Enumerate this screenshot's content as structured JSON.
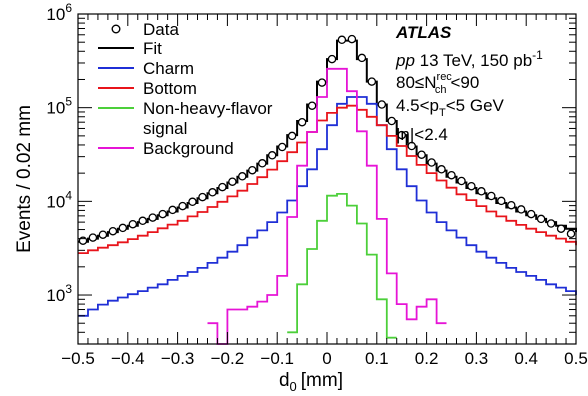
{
  "chart_data": {
    "type": "histogram",
    "xlabel_base": "d",
    "xlabel_sub": "0",
    "xlabel_unit": "[mm]",
    "ylabel": "Events / 0.02 mm",
    "xlim": [
      -0.5,
      0.5
    ],
    "ylim": [
      300,
      1000000
    ],
    "y_scale": "log",
    "x_tick_labels": [
      "-0.5",
      "-0.4",
      "-0.3",
      "-0.2",
      "-0.1",
      "0",
      "0.1",
      "0.2",
      "0.3",
      "0.4",
      "0.5"
    ],
    "y_tick_labels": [
      {
        "base": "10",
        "exp": "3",
        "value": 1000
      },
      {
        "base": "10",
        "exp": "4",
        "value": 10000
      },
      {
        "base": "10",
        "exp": "5",
        "value": 100000
      },
      {
        "base": "10",
        "exp": "6",
        "value": 1000000
      }
    ],
    "bin_edges_step": 0.02,
    "legend": [
      {
        "label": "Data",
        "style": "marker",
        "color": "#000000"
      },
      {
        "label": "Fit",
        "style": "line",
        "color": "#000000"
      },
      {
        "label": "Charm",
        "style": "line",
        "color": "#1f2fd6"
      },
      {
        "label": "Bottom",
        "style": "line",
        "color": "#e8141b"
      },
      {
        "label": "Non-heavy-flavor",
        "label2": "signal",
        "style": "line",
        "color": "#4ccf3a"
      },
      {
        "label": "Background",
        "style": "line",
        "color": "#e614d6"
      }
    ],
    "annotations": {
      "atlas": "ATLAS",
      "line1_italic": "pp",
      "line1_rest": " 13 TeV, 150 pb",
      "line1_sup": "-1",
      "line2_pre": "80≤N",
      "line2_sup": "rec",
      "line2_sub": "ch",
      "line2_post": "<90",
      "line3_pre": "4.5<p",
      "line3_sub": "T",
      "line3_post": "<5 GeV",
      "line4": "|η|<2.4"
    },
    "series": [
      {
        "name": "Data",
        "type": "points",
        "color": "#000000",
        "values": [
          3800,
          4100,
          4400,
          4800,
          5200,
          5700,
          6200,
          6700,
          7300,
          8100,
          8900,
          9900,
          11100,
          12500,
          14200,
          16200,
          18500,
          21500,
          25500,
          31000,
          38000,
          50000,
          70000,
          105000,
          185000,
          330000,
          530000,
          540000,
          340000,
          190000,
          108000,
          72000,
          51000,
          39000,
          31500,
          26000,
          22000,
          19000,
          16500,
          14500,
          12800,
          11400,
          10100,
          9100,
          8200,
          7300,
          6500,
          5800,
          5100,
          4500,
          4000
        ]
      },
      {
        "name": "Fit",
        "type": "step",
        "color": "#000000",
        "values": [
          3700,
          4000,
          4300,
          4700,
          5100,
          5500,
          6000,
          6500,
          7100,
          7800,
          8600,
          9600,
          10800,
          12200,
          13900,
          15900,
          18300,
          21300,
          25300,
          31000,
          38500,
          51000,
          72000,
          108000,
          190000,
          330000,
          520000,
          520000,
          330000,
          190000,
          108000,
          72000,
          51000,
          38500,
          31000,
          25300,
          21300,
          18300,
          15900,
          13900,
          12200,
          10800,
          9600,
          8600,
          7800,
          7100,
          6500,
          6000,
          5500,
          5100,
          4700
        ]
      },
      {
        "name": "Charm",
        "type": "step",
        "color": "#1f2fd6",
        "values": [
          600,
          700,
          790,
          870,
          940,
          1020,
          1100,
          1200,
          1300,
          1450,
          1600,
          1760,
          1950,
          2200,
          2500,
          2900,
          3400,
          4100,
          4900,
          6000,
          7600,
          10200,
          14500,
          22000,
          36000,
          65000,
          110000,
          130000,
          130000,
          110000,
          65000,
          36000,
          22000,
          14500,
          10200,
          7600,
          6000,
          4900,
          4100,
          3400,
          2900,
          2500,
          2200,
          1950,
          1760,
          1600,
          1450,
          1300,
          1200,
          1100,
          1000
        ]
      },
      {
        "name": "Bottom",
        "type": "step",
        "color": "#e8141b",
        "values": [
          2800,
          3000,
          3200,
          3400,
          3650,
          3950,
          4300,
          4700,
          5150,
          5650,
          6200,
          6900,
          7700,
          8700,
          9900,
          11300,
          13000,
          15300,
          18100,
          21800,
          26800,
          33500,
          42500,
          55000,
          73000,
          88000,
          100000,
          105000,
          95000,
          80000,
          65000,
          50000,
          39000,
          30500,
          24500,
          20000,
          16700,
          14000,
          11900,
          10300,
          8900,
          7800,
          6900,
          6200,
          5600,
          5100,
          4700,
          4300,
          4000,
          3700,
          3400
        ]
      },
      {
        "name": "Non-heavy-flavor signal",
        "type": "step",
        "color": "#4ccf3a",
        "values": [
          null,
          null,
          null,
          null,
          null,
          null,
          null,
          null,
          null,
          null,
          null,
          null,
          null,
          null,
          null,
          null,
          null,
          null,
          null,
          null,
          null,
          400,
          1300,
          3100,
          6200,
          11500,
          12000,
          9000,
          5800,
          2700,
          900,
          350,
          null,
          null,
          null,
          null,
          null,
          null,
          null,
          null,
          null,
          null,
          null,
          null,
          null,
          null,
          null,
          null,
          null,
          null,
          null
        ]
      },
      {
        "name": "Background",
        "type": "step",
        "color": "#e614d6",
        "values": [
          null,
          null,
          null,
          null,
          null,
          null,
          null,
          null,
          null,
          null,
          null,
          null,
          null,
          500,
          300,
          700,
          700,
          750,
          850,
          1000,
          1600,
          6800,
          24000,
          55000,
          130000,
          260000,
          260000,
          150000,
          56000,
          24000,
          6500,
          1700,
          800,
          550,
          750,
          900,
          500,
          null,
          null,
          null,
          null,
          null,
          null,
          null,
          null,
          null,
          null,
          null,
          null,
          null,
          null
        ]
      }
    ]
  }
}
